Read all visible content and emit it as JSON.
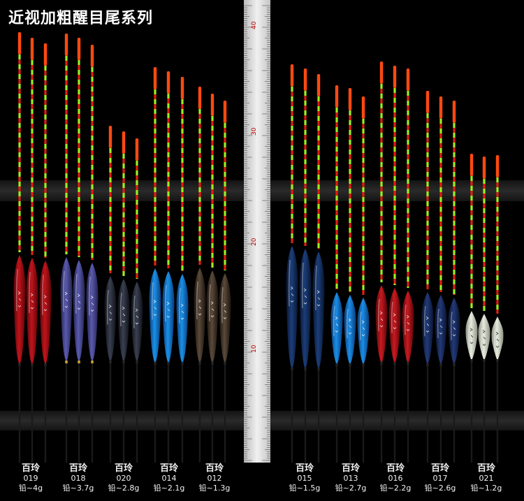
{
  "title": "近视加粗醒目尾系列",
  "ruler": {
    "labels": [
      "10",
      "20",
      "30",
      "40"
    ]
  },
  "palette": {
    "background": "#000000",
    "tip_orange": "#ff4a10",
    "segment_green": "#9bef1e",
    "segment_red": "#e02010",
    "stem": "#1a1a1a",
    "ruler_face": "#e6e6e6"
  },
  "groups": [
    {
      "brand": "百玲",
      "model": "019",
      "weight": "铅~4g",
      "body_color": "#c0141c",
      "body_dark": "#5a0508"
    },
    {
      "brand": "百玲",
      "model": "018",
      "weight": "铅~3.7g",
      "body_color": "#5a5ab0",
      "body_dark": "#24244e"
    },
    {
      "brand": "百玲",
      "model": "020",
      "weight": "铅~2.8g",
      "body_color": "#3a4050",
      "body_dark": "#0e1018"
    },
    {
      "brand": "百玲",
      "model": "014",
      "weight": "铅~2.1g",
      "body_color": "#1a90e8",
      "body_dark": "#0a3c78"
    },
    {
      "brand": "百玲",
      "model": "012",
      "weight": "铅~1.3g",
      "body_color": "#5a4a3a",
      "body_dark": "#1c140e"
    },
    {
      "brand": "百玲",
      "model": "015",
      "weight": "铅~1.5g",
      "body_color": "#1c3e7a",
      "body_dark": "#081630"
    },
    {
      "brand": "百玲",
      "model": "013",
      "weight": "铅~2.7g",
      "body_color": "#1a8ee8",
      "body_dark": "#0a3c78"
    },
    {
      "brand": "百玲",
      "model": "016",
      "weight": "铅~2.2g",
      "body_color": "#c81a20",
      "body_dark": "#580608"
    },
    {
      "brand": "百玲",
      "model": "017",
      "weight": "铅~2.6g",
      "body_color": "#223a78",
      "body_dark": "#0a142e"
    },
    {
      "brand": "百玲",
      "model": "021",
      "weight": "铅~1.2g",
      "body_color": "#e8ece0",
      "body_dark": "#8a9282"
    }
  ]
}
